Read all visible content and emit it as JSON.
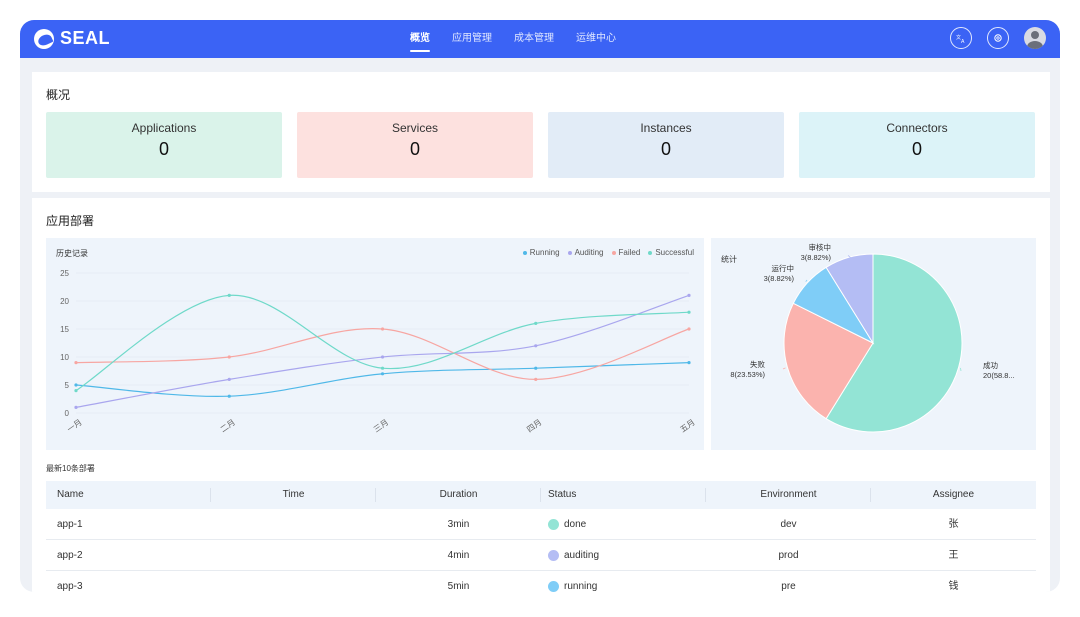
{
  "app": {
    "logo_text": "SEAL"
  },
  "nav": {
    "items": [
      {
        "label": "概览",
        "active": true
      },
      {
        "label": "应用管理",
        "active": false
      },
      {
        "label": "成本管理",
        "active": false
      },
      {
        "label": "运维中心",
        "active": false
      }
    ]
  },
  "topbar_icons": [
    "translate-icon",
    "settings-icon",
    "avatar"
  ],
  "overview": {
    "title": "概况",
    "cards": [
      {
        "label": "Applications",
        "value": "0",
        "color": "#daf3ea"
      },
      {
        "label": "Services",
        "value": "0",
        "color": "#fde1df"
      },
      {
        "label": "Instances",
        "value": "0",
        "color": "#e2ecf7"
      },
      {
        "label": "Connectors",
        "value": "0",
        "color": "#dcf3f8"
      }
    ]
  },
  "deploy": {
    "title": "应用部署",
    "history_title": "历史记录",
    "stats_title": "统计",
    "table_title": "最新10条部署"
  },
  "chart_data": [
    {
      "type": "line",
      "title": "历史记录",
      "categories": [
        "一月",
        "二月",
        "三月",
        "四月",
        "五月"
      ],
      "y_ticks": [
        "0",
        "5",
        "10",
        "15",
        "20",
        "25"
      ],
      "ylim": [
        0,
        25
      ],
      "grid": true,
      "legend_position": "top-right",
      "series": [
        {
          "name": "Running",
          "color": "#4fb8e8",
          "values": [
            5,
            3,
            7,
            8,
            9
          ]
        },
        {
          "name": "Auditing",
          "color": "#a9a6ee",
          "values": [
            1,
            6,
            10,
            12,
            21
          ]
        },
        {
          "name": "Failed",
          "color": "#f7a6a2",
          "values": [
            9,
            10,
            15,
            6,
            15
          ]
        },
        {
          "name": "Successful",
          "color": "#6fd9c9",
          "values": [
            4,
            21,
            8,
            16,
            18
          ]
        }
      ]
    },
    {
      "type": "pie",
      "title": "统计",
      "slices": [
        {
          "label": "成功",
          "value": 20,
          "pct_label": "20(58.8...",
          "color": "#93e4d5"
        },
        {
          "label": "失败",
          "value": 8,
          "pct_label": "8(23.53%)",
          "color": "#fbb3ae"
        },
        {
          "label": "运行中",
          "value": 3,
          "pct_label": "3(8.82%)",
          "color": "#7fcdf7"
        },
        {
          "label": "审核中",
          "value": 3,
          "pct_label": "3(8.82%)",
          "color": "#b4bdf4"
        }
      ]
    }
  ],
  "table": {
    "columns": [
      "Name",
      "Time",
      "Duration",
      "Status",
      "Environment",
      "Assignee"
    ],
    "rows": [
      {
        "name": "app-1",
        "time": "",
        "duration": "3min",
        "status": "done",
        "status_color": "#93e4d5",
        "environment": "dev",
        "assignee": "张"
      },
      {
        "name": "app-2",
        "time": "",
        "duration": "4min",
        "status": "auditing",
        "status_color": "#b4bdf4",
        "environment": "prod",
        "assignee": "王"
      },
      {
        "name": "app-3",
        "time": "",
        "duration": "5min",
        "status": "running",
        "status_color": "#7fcdf7",
        "environment": "pre",
        "assignee": "钱"
      }
    ]
  }
}
